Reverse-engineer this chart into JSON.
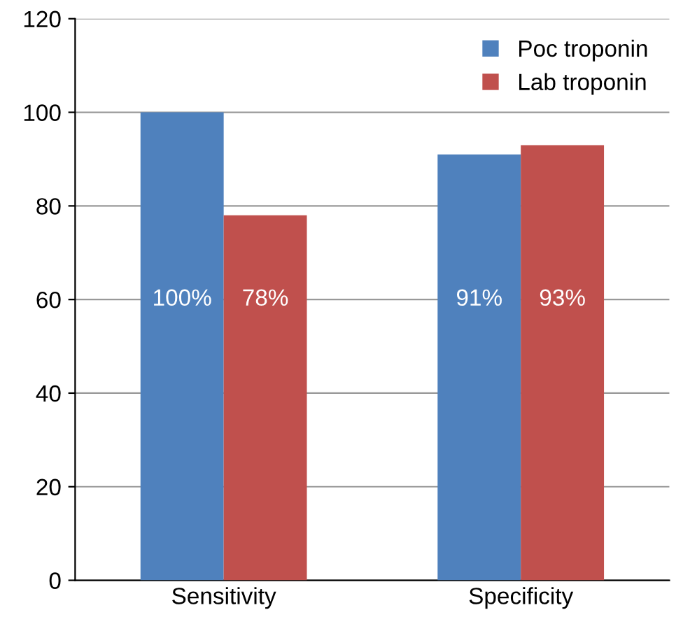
{
  "chart_data": {
    "type": "bar",
    "categories": [
      "Sensitivity",
      "Specificity"
    ],
    "series": [
      {
        "name": "Poc troponin",
        "color": "#4f81bd",
        "values": [
          100,
          91
        ],
        "value_labels": [
          "100%",
          "91%"
        ]
      },
      {
        "name": "Lab troponin",
        "color": "#c0504d",
        "values": [
          78,
          93
        ],
        "value_labels": [
          "78%",
          "93%"
        ]
      }
    ],
    "ylim": [
      0,
      120
    ],
    "yticks": [
      0,
      20,
      40,
      60,
      80,
      100,
      120
    ],
    "grid": "y",
    "legend": "top right"
  }
}
